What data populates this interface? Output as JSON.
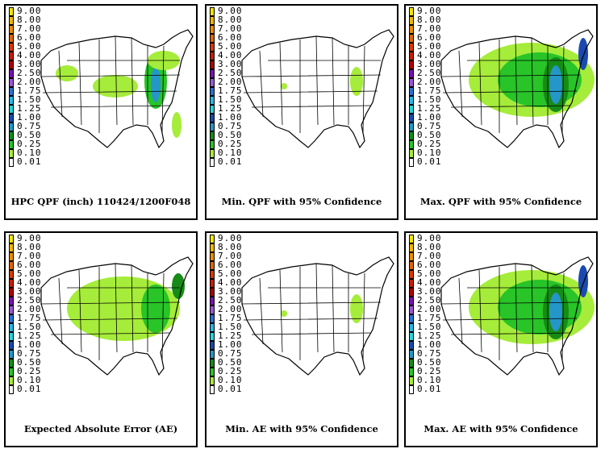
{
  "legend": {
    "labels": [
      "9.00",
      "8.00",
      "7.00",
      "6.00",
      "5.00",
      "4.00",
      "3.00",
      "2.50",
      "2.00",
      "1.75",
      "1.50",
      "1.25",
      "1.00",
      "0.75",
      "0.50",
      "0.25",
      "0.10",
      "0.01"
    ],
    "colors": [
      "#f4e500",
      "#f2b600",
      "#f08a00",
      "#e46400",
      "#d83a00",
      "#c81e00",
      "#b00000",
      "#7a0fb4",
      "#9b55d6",
      "#2a6fd6",
      "#2bb5e8",
      "#28d4d8",
      "#1a4ab0",
      "#2596c8",
      "#168c16",
      "#28c428",
      "#a6ec3a",
      "#ffffff"
    ]
  },
  "panels": [
    {
      "caption": "HPC QPF (inch) 110424/1200F048",
      "intensity": "base"
    },
    {
      "caption": "Min. QPF with 95% Confidence",
      "intensity": "min"
    },
    {
      "caption": "Max. QPF with 95% Confidence",
      "intensity": "max"
    },
    {
      "caption": "Expected Absolute Error (AE)",
      "intensity": "ae"
    },
    {
      "caption": "Min. AE with 95% Confidence",
      "intensity": "min"
    },
    {
      "caption": "Max. AE with 95% Confidence",
      "intensity": "max"
    }
  ]
}
